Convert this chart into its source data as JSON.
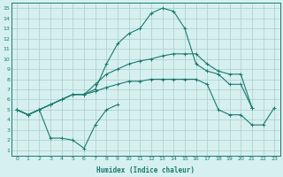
{
  "xlabel": "Humidex (Indice chaleur)",
  "x_values": [
    0,
    1,
    2,
    3,
    4,
    5,
    6,
    7,
    8,
    9,
    10,
    11,
    12,
    13,
    14,
    15,
    16,
    17,
    18,
    19,
    20,
    21,
    22,
    23
  ],
  "line1_y": [
    5.0,
    4.5,
    5.0,
    5.5,
    6.0,
    6.5,
    6.5,
    7.0,
    9.5,
    11.5,
    12.5,
    13.0,
    14.5,
    15.0,
    14.7,
    13.0,
    9.5,
    8.8,
    8.5,
    7.5,
    7.5,
    5.2,
    null,
    null
  ],
  "line2_y": [
    5.0,
    4.5,
    5.0,
    5.5,
    6.0,
    6.5,
    6.5,
    7.5,
    8.5,
    9.0,
    9.5,
    9.8,
    10.0,
    10.3,
    10.5,
    10.5,
    10.5,
    9.5,
    8.8,
    8.5,
    8.5,
    5.2,
    null,
    null
  ],
  "line3_y": [
    5.0,
    4.5,
    5.0,
    5.5,
    6.0,
    6.5,
    6.5,
    6.8,
    7.2,
    7.5,
    7.8,
    7.8,
    8.0,
    8.0,
    8.0,
    8.0,
    8.0,
    7.5,
    5.0,
    4.5,
    4.5,
    3.5,
    3.5,
    5.2
  ],
  "line4_y": [
    5.0,
    4.5,
    5.0,
    2.2,
    2.2,
    2.0,
    1.2,
    3.5,
    5.0,
    5.5,
    null,
    null,
    null,
    null,
    null,
    null,
    null,
    null,
    null,
    null,
    null,
    null,
    null,
    null
  ],
  "line_color": "#1a7a6e",
  "bg_color": "#d6f0ef",
  "grid_color": "#aacccc",
  "xlim": [
    -0.5,
    23.5
  ],
  "ylim": [
    0.5,
    15.5
  ],
  "yticks": [
    1,
    2,
    3,
    4,
    5,
    6,
    7,
    8,
    9,
    10,
    11,
    12,
    13,
    14,
    15
  ],
  "xticks": [
    0,
    1,
    2,
    3,
    4,
    5,
    6,
    7,
    8,
    9,
    10,
    11,
    12,
    13,
    14,
    15,
    16,
    17,
    18,
    19,
    20,
    21,
    22,
    23
  ]
}
